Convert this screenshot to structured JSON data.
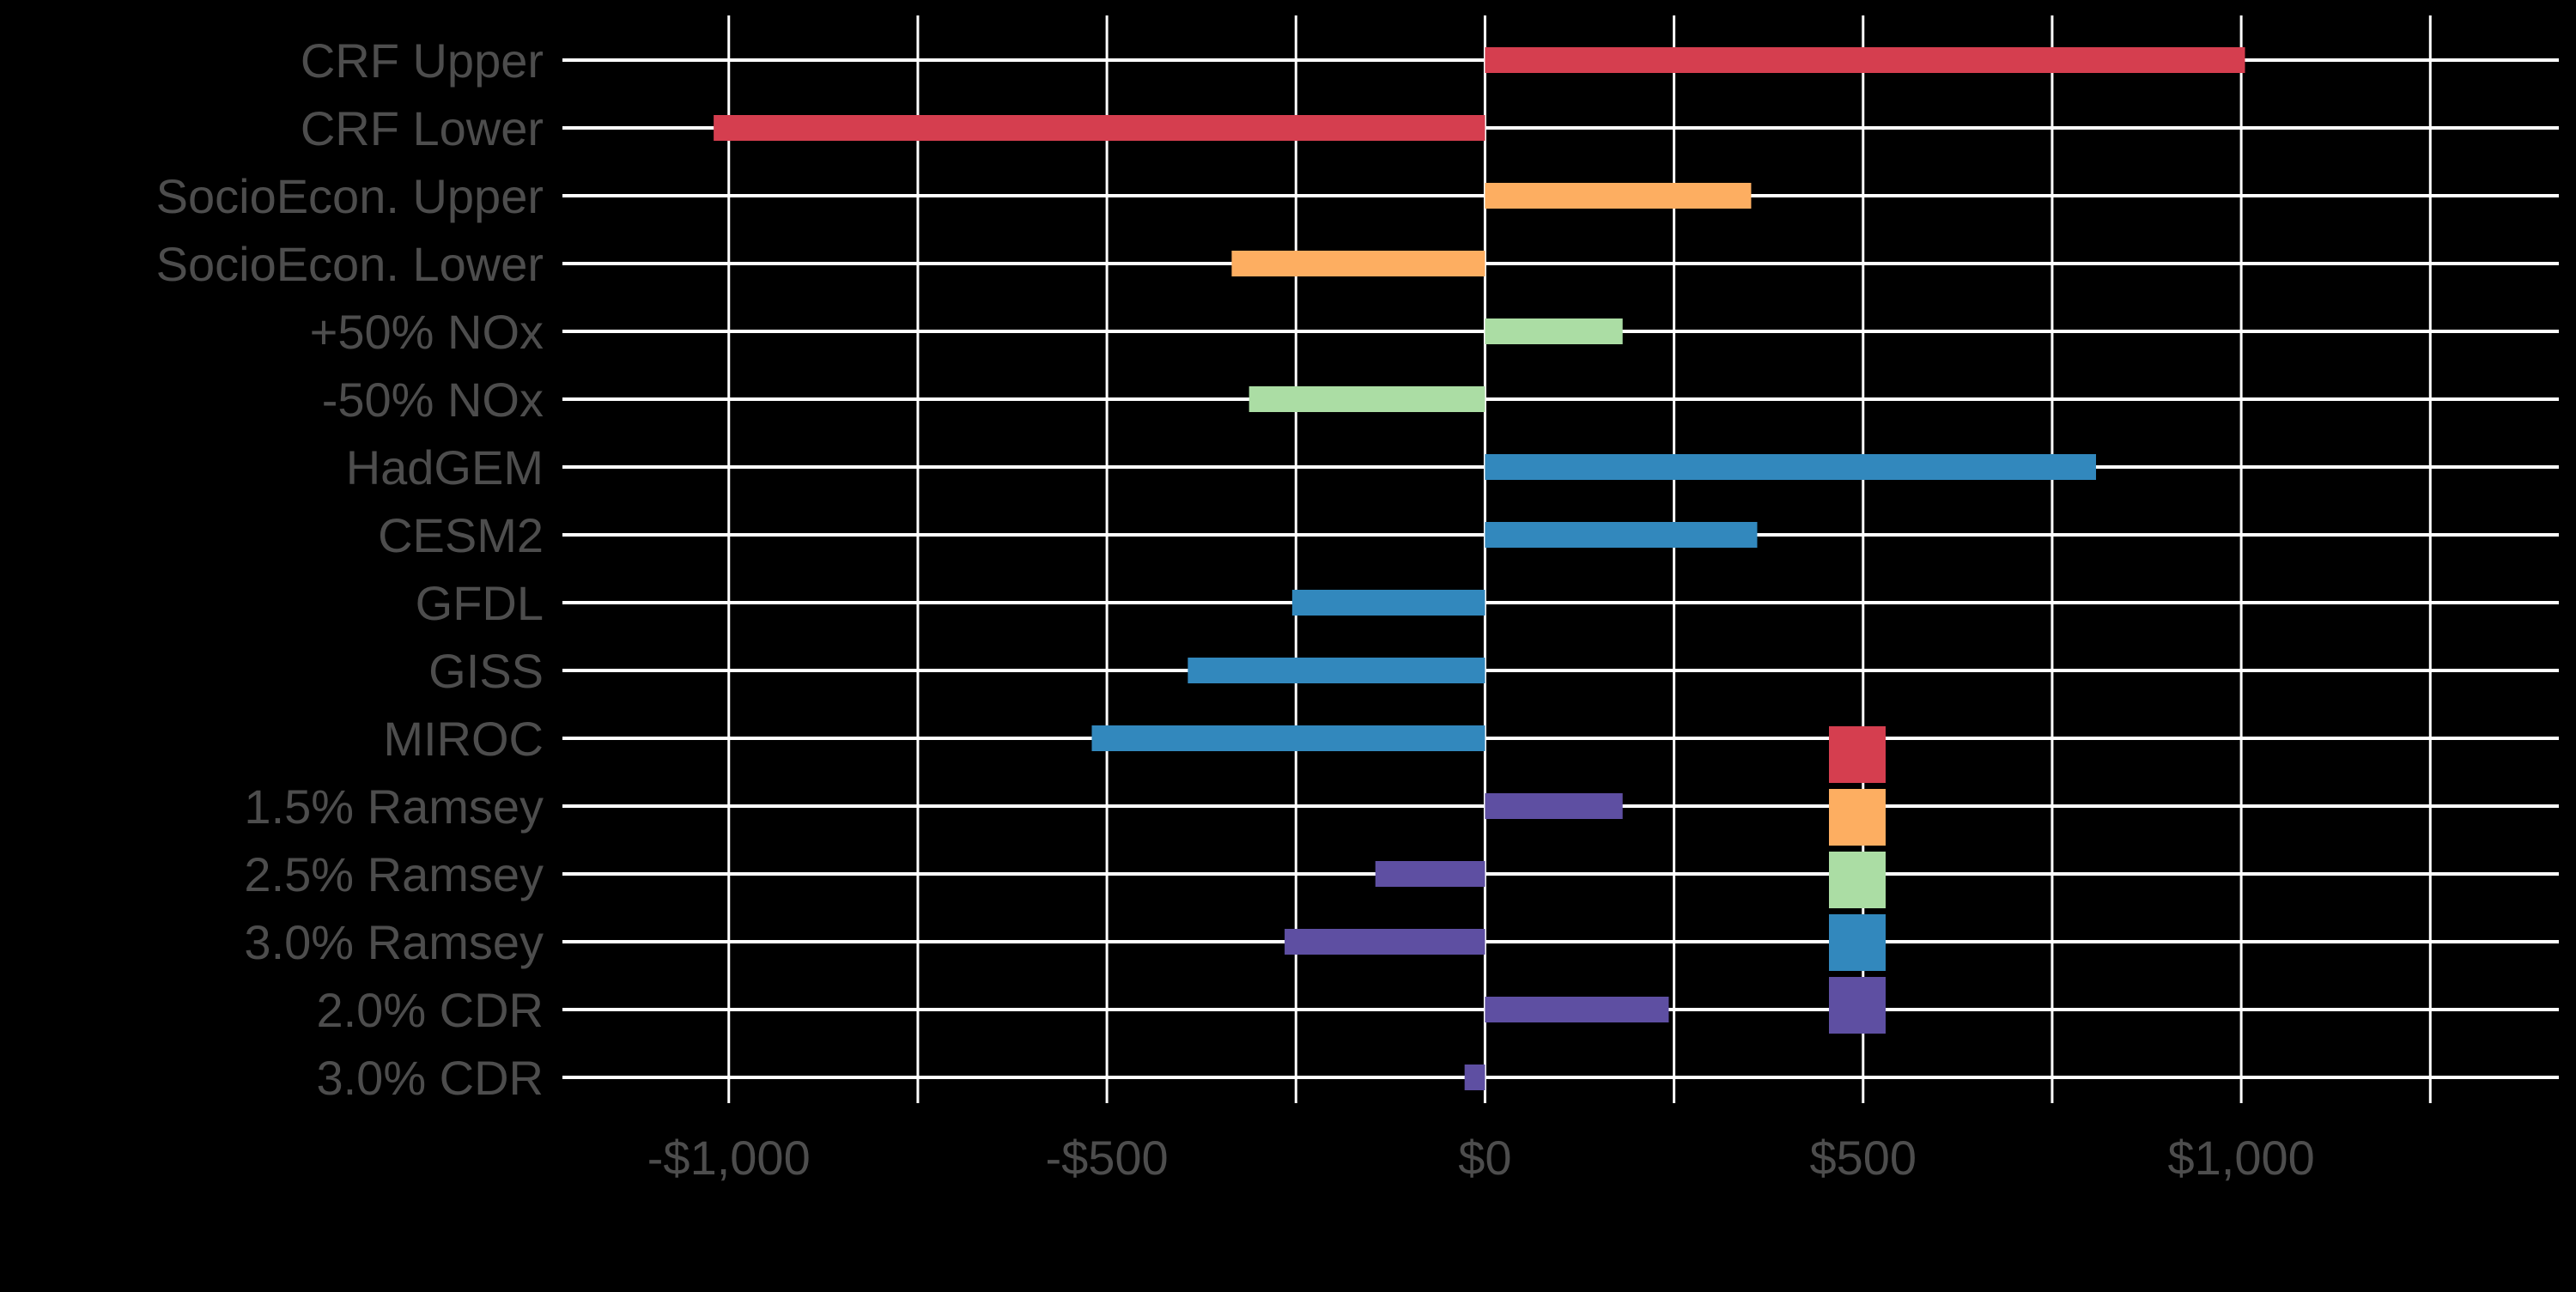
{
  "chart_data": {
    "type": "bar",
    "orientation": "horizontal",
    "title": "",
    "xlabel": "",
    "ylabel": "",
    "categories": [
      "CRF Upper",
      "CRF Lower",
      "SocioEcon. Upper",
      "SocioEcon. Lower",
      "+50% NOx",
      "-50% NOx",
      "HadGEM",
      "CESM2",
      "GFDL",
      "GISS",
      "MIROC",
      "1.5% Ramsey",
      "2.5% Ramsey",
      "3.0% Ramsey",
      "2.0% CDR",
      "3.0% CDR"
    ],
    "values": [
      1005,
      -1020,
      352,
      -335,
      182,
      -312,
      808,
      360,
      -255,
      -393,
      -520,
      182,
      -145,
      -265,
      243,
      -27
    ],
    "bar_groups": [
      0,
      0,
      1,
      1,
      2,
      2,
      3,
      3,
      3,
      3,
      3,
      4,
      4,
      4,
      4,
      4
    ],
    "xlim": [
      -1220,
      1420
    ],
    "x_ticks": [
      -1000,
      -500,
      0,
      500,
      1000
    ],
    "x_tick_labels": [
      "-$1,000",
      "-$500",
      "$0",
      "$500",
      "$1,000"
    ],
    "x_gridlines": [
      -1000,
      -750,
      -500,
      -250,
      0,
      250,
      500,
      750,
      1000,
      1250
    ],
    "grid": true,
    "legend_position": "bottom-right",
    "legend": [
      {
        "label": "",
        "color": "#D53E4F"
      },
      {
        "label": "",
        "color": "#FDAE61"
      },
      {
        "label": "",
        "color": "#ABDDA4"
      },
      {
        "label": "",
        "color": "#3288BD"
      },
      {
        "label": "",
        "color": "#5E4FA2"
      }
    ],
    "colors": {
      "background": "#000000",
      "grid": "#FFFFFF",
      "tick_text": "#4D4D4D"
    }
  }
}
